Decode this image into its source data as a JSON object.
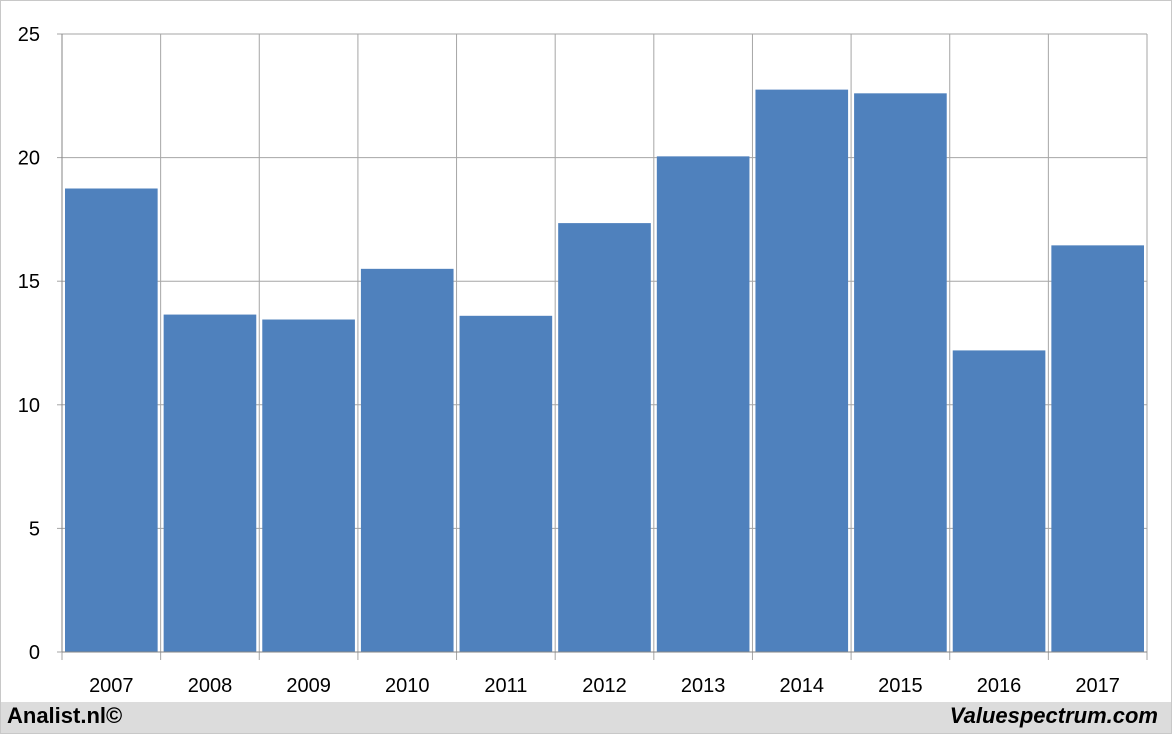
{
  "chart_data": {
    "type": "bar",
    "categories": [
      "2007",
      "2008",
      "2009",
      "2010",
      "2011",
      "2012",
      "2013",
      "2014",
      "2015",
      "2016",
      "2017"
    ],
    "values": [
      18.75,
      13.65,
      13.45,
      15.5,
      13.6,
      17.35,
      20.05,
      22.75,
      22.6,
      12.2,
      16.45
    ],
    "title": "",
    "xlabel": "",
    "ylabel": "",
    "ylim": [
      0,
      25
    ],
    "yticks": [
      "0",
      "5",
      "10",
      "15",
      "20",
      "25"
    ],
    "grid": true,
    "legend": "none",
    "bar_color": "#4f81bd",
    "grid_color": "#a6a6a6"
  },
  "footer": {
    "left_text": "Analist.nl©",
    "right_text": "Valuespectrum.com"
  }
}
